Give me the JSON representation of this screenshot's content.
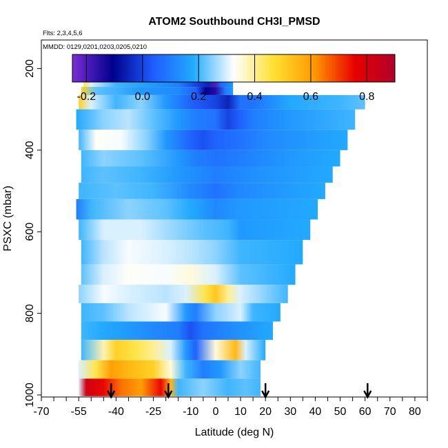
{
  "chart_data": {
    "type": "heatmap",
    "title": "ATOM2 Southbound CH3I_PMSD",
    "annotations": [
      "Flts: 2,3,4,5,6",
      "MMDD: 0129,0201,0203,0205,0210"
    ],
    "xlabel": "Latitude (deg N)",
    "ylabel": "PSXC (mbar)",
    "xlim": [
      -70,
      85
    ],
    "ylim": [
      1005,
      130
    ],
    "y_reversed": true,
    "x_tick_labels": [
      "-70",
      "-55",
      "-40",
      "-25",
      "-10",
      "0",
      "10",
      "20",
      "30",
      "40",
      "50",
      "60",
      "70",
      "80"
    ],
    "y_tick_labels": [
      "200",
      "400",
      "600",
      "800",
      "1000"
    ],
    "colorbar": {
      "range": [
        -0.25,
        0.9
      ],
      "tick_values": [
        -0.2,
        0.0,
        0.2,
        0.4,
        0.6,
        0.8
      ],
      "tick_labels": [
        "-0.2",
        "0.0",
        "0.2",
        "0.4",
        "0.6",
        "0.8"
      ],
      "colors": [
        "#7b2cd6",
        "#00008c",
        "#1f5cff",
        "#22aaff",
        "#ffffff",
        "#ffe030",
        "#ff9900",
        "#e80000",
        "#b0002a"
      ]
    },
    "profile_locations_lat": [
      -42,
      -19,
      20,
      61
    ],
    "curtain_layers": [
      {
        "p_top": 170,
        "p_bot": 200,
        "lat_start": -53,
        "lat_end": -46,
        "values": [
          {
            "lat": -53,
            "v": 0.55
          },
          {
            "lat": -51,
            "v": 0.45
          },
          {
            "lat": -49,
            "v": 0.35
          },
          {
            "lat": -47,
            "v": 0.25
          }
        ]
      },
      {
        "p_top": 200,
        "p_bot": 245,
        "lat_start": -53,
        "lat_end": 7,
        "values": [
          {
            "lat": -53,
            "v": 0.45
          },
          {
            "lat": -50,
            "v": 0.3
          },
          {
            "lat": -40,
            "v": 0.2
          },
          {
            "lat": -25,
            "v": 0.15
          },
          {
            "lat": -15,
            "v": 0.1
          },
          {
            "lat": -8,
            "v": 0.0
          },
          {
            "lat": -3,
            "v": -0.05
          },
          {
            "lat": 0,
            "v": -0.2
          },
          {
            "lat": 2,
            "v": 0.05
          },
          {
            "lat": 7,
            "v": 0.15
          }
        ]
      },
      {
        "p_top": 245,
        "p_bot": 265,
        "lat_start": -54,
        "lat_end": 7,
        "values": [
          {
            "lat": -54,
            "v": 0.5
          },
          {
            "lat": -48,
            "v": 0.22
          },
          {
            "lat": -30,
            "v": 0.15
          },
          {
            "lat": -15,
            "v": 0.12
          },
          {
            "lat": -8,
            "v": 0.05
          },
          {
            "lat": -4,
            "v": -0.1
          },
          {
            "lat": 0,
            "v": -0.15
          },
          {
            "lat": 4,
            "v": 0.1
          },
          {
            "lat": 7,
            "v": 0.15
          }
        ]
      },
      {
        "p_top": 265,
        "p_bot": 300,
        "lat_start": -55,
        "lat_end": 60,
        "values": [
          {
            "lat": -55,
            "v": 0.5
          },
          {
            "lat": -50,
            "v": 0.3
          },
          {
            "lat": -40,
            "v": 0.2
          },
          {
            "lat": -30,
            "v": 0.25
          },
          {
            "lat": -20,
            "v": 0.15
          },
          {
            "lat": -10,
            "v": 0.05
          },
          {
            "lat": 0,
            "v": 0.0
          },
          {
            "lat": 5,
            "v": -0.05
          },
          {
            "lat": 10,
            "v": 0.08
          },
          {
            "lat": 15,
            "v": 0.08
          },
          {
            "lat": 30,
            "v": 0.18
          },
          {
            "lat": 50,
            "v": 0.2
          },
          {
            "lat": 60,
            "v": 0.22
          }
        ]
      },
      {
        "p_top": 300,
        "p_bot": 350,
        "lat_start": -56,
        "lat_end": 56,
        "values": [
          {
            "lat": -56,
            "v": 0.18
          },
          {
            "lat": -45,
            "v": 0.25
          },
          {
            "lat": -35,
            "v": 0.28
          },
          {
            "lat": -25,
            "v": 0.22
          },
          {
            "lat": -15,
            "v": 0.15
          },
          {
            "lat": -8,
            "v": 0.1
          },
          {
            "lat": 0,
            "v": 0.08
          },
          {
            "lat": 5,
            "v": 0.0
          },
          {
            "lat": 10,
            "v": 0.05
          },
          {
            "lat": 15,
            "v": 0.1
          },
          {
            "lat": 30,
            "v": 0.15
          },
          {
            "lat": 56,
            "v": 0.2
          }
        ]
      },
      {
        "p_top": 350,
        "p_bot": 400,
        "lat_start": -55,
        "lat_end": 53,
        "values": [
          {
            "lat": -55,
            "v": 0.2
          },
          {
            "lat": -48,
            "v": 0.33
          },
          {
            "lat": -38,
            "v": 0.32
          },
          {
            "lat": -28,
            "v": 0.25
          },
          {
            "lat": -20,
            "v": 0.15
          },
          {
            "lat": -10,
            "v": 0.05
          },
          {
            "lat": -5,
            "v": 0.02
          },
          {
            "lat": 0,
            "v": 0.05
          },
          {
            "lat": 10,
            "v": 0.08
          },
          {
            "lat": 20,
            "v": 0.12
          },
          {
            "lat": 53,
            "v": 0.18
          }
        ]
      },
      {
        "p_top": 400,
        "p_bot": 440,
        "lat_start": -54,
        "lat_end": 50,
        "values": [
          {
            "lat": -54,
            "v": 0.2
          },
          {
            "lat": -45,
            "v": 0.25
          },
          {
            "lat": -30,
            "v": 0.22
          },
          {
            "lat": -15,
            "v": 0.15
          },
          {
            "lat": -8,
            "v": 0.1
          },
          {
            "lat": 0,
            "v": 0.08
          },
          {
            "lat": 10,
            "v": 0.1
          },
          {
            "lat": 30,
            "v": 0.15
          },
          {
            "lat": 50,
            "v": 0.18
          }
        ]
      },
      {
        "p_top": 440,
        "p_bot": 480,
        "lat_start": -54,
        "lat_end": 47,
        "values": [
          {
            "lat": -54,
            "v": 0.2
          },
          {
            "lat": -45,
            "v": 0.22
          },
          {
            "lat": -30,
            "v": 0.2
          },
          {
            "lat": -15,
            "v": 0.15
          },
          {
            "lat": 0,
            "v": 0.1
          },
          {
            "lat": 20,
            "v": 0.14
          },
          {
            "lat": 47,
            "v": 0.18
          }
        ]
      },
      {
        "p_top": 480,
        "p_bot": 520,
        "lat_start": -55,
        "lat_end": 44,
        "values": [
          {
            "lat": -55,
            "v": 0.2
          },
          {
            "lat": -40,
            "v": 0.22
          },
          {
            "lat": -25,
            "v": 0.2
          },
          {
            "lat": -10,
            "v": 0.12
          },
          {
            "lat": 0,
            "v": 0.08
          },
          {
            "lat": 10,
            "v": 0.12
          },
          {
            "lat": 44,
            "v": 0.18
          }
        ]
      },
      {
        "p_top": 520,
        "p_bot": 570,
        "lat_start": -56,
        "lat_end": 41,
        "values": [
          {
            "lat": -56,
            "v": 0.1
          },
          {
            "lat": -50,
            "v": 0.2
          },
          {
            "lat": -35,
            "v": 0.25
          },
          {
            "lat": -20,
            "v": 0.22
          },
          {
            "lat": -10,
            "v": 0.18
          },
          {
            "lat": 0,
            "v": 0.12
          },
          {
            "lat": 10,
            "v": 0.15
          },
          {
            "lat": 41,
            "v": 0.18
          }
        ]
      },
      {
        "p_top": 570,
        "p_bot": 620,
        "lat_start": -55,
        "lat_end": 38,
        "values": [
          {
            "lat": -55,
            "v": 0.2
          },
          {
            "lat": -45,
            "v": 0.3
          },
          {
            "lat": -30,
            "v": 0.3
          },
          {
            "lat": -15,
            "v": 0.25
          },
          {
            "lat": -5,
            "v": 0.22
          },
          {
            "lat": 5,
            "v": 0.2
          },
          {
            "lat": 10,
            "v": 0.15
          },
          {
            "lat": 38,
            "v": 0.18
          }
        ]
      },
      {
        "p_top": 620,
        "p_bot": 680,
        "lat_start": -54,
        "lat_end": 35,
        "values": [
          {
            "lat": -54,
            "v": 0.2
          },
          {
            "lat": -45,
            "v": 0.28
          },
          {
            "lat": -35,
            "v": 0.32
          },
          {
            "lat": -20,
            "v": 0.3
          },
          {
            "lat": -10,
            "v": 0.28
          },
          {
            "lat": 0,
            "v": 0.25
          },
          {
            "lat": 10,
            "v": 0.2
          },
          {
            "lat": 35,
            "v": 0.18
          }
        ]
      },
      {
        "p_top": 680,
        "p_bot": 730,
        "lat_start": -54,
        "lat_end": 32,
        "values": [
          {
            "lat": -54,
            "v": 0.22
          },
          {
            "lat": -45,
            "v": 0.3
          },
          {
            "lat": -35,
            "v": 0.33
          },
          {
            "lat": -20,
            "v": 0.32
          },
          {
            "lat": -10,
            "v": 0.35
          },
          {
            "lat": 0,
            "v": 0.3
          },
          {
            "lat": 10,
            "v": 0.22
          },
          {
            "lat": 32,
            "v": 0.18
          }
        ]
      },
      {
        "p_top": 730,
        "p_bot": 775,
        "lat_start": -55,
        "lat_end": 29,
        "values": [
          {
            "lat": -55,
            "v": 0.25
          },
          {
            "lat": -45,
            "v": 0.32
          },
          {
            "lat": -35,
            "v": 0.3
          },
          {
            "lat": -20,
            "v": 0.28
          },
          {
            "lat": -12,
            "v": 0.3
          },
          {
            "lat": -4,
            "v": 0.45
          },
          {
            "lat": 0,
            "v": 0.52
          },
          {
            "lat": 5,
            "v": 0.4
          },
          {
            "lat": 10,
            "v": 0.3
          },
          {
            "lat": 29,
            "v": 0.2
          }
        ]
      },
      {
        "p_top": 775,
        "p_bot": 820,
        "lat_start": -54,
        "lat_end": 26,
        "values": [
          {
            "lat": -54,
            "v": 0.2
          },
          {
            "lat": -45,
            "v": 0.22
          },
          {
            "lat": -35,
            "v": 0.28
          },
          {
            "lat": -20,
            "v": 0.32
          },
          {
            "lat": -12,
            "v": 0.15
          },
          {
            "lat": -8,
            "v": 0.1
          },
          {
            "lat": 0,
            "v": 0.25
          },
          {
            "lat": 10,
            "v": 0.3
          },
          {
            "lat": 15,
            "v": 0.2
          },
          {
            "lat": 26,
            "v": 0.18
          }
        ]
      },
      {
        "p_top": 820,
        "p_bot": 865,
        "lat_start": -54,
        "lat_end": 23,
        "values": [
          {
            "lat": -54,
            "v": 0.2
          },
          {
            "lat": -45,
            "v": 0.18
          },
          {
            "lat": -35,
            "v": 0.15
          },
          {
            "lat": -25,
            "v": 0.12
          },
          {
            "lat": -15,
            "v": 0.1
          },
          {
            "lat": -10,
            "v": 0.02
          },
          {
            "lat": -5,
            "v": 0.08
          },
          {
            "lat": 5,
            "v": 0.12
          },
          {
            "lat": 23,
            "v": 0.18
          }
        ]
      },
      {
        "p_top": 865,
        "p_bot": 915,
        "lat_start": -54,
        "lat_end": 20,
        "values": [
          {
            "lat": -54,
            "v": 0.2
          },
          {
            "lat": -45,
            "v": 0.38
          },
          {
            "lat": -40,
            "v": 0.5
          },
          {
            "lat": -32,
            "v": 0.45
          },
          {
            "lat": -25,
            "v": 0.4
          },
          {
            "lat": -18,
            "v": 0.3
          },
          {
            "lat": -12,
            "v": 0.15
          },
          {
            "lat": -8,
            "v": 0.05
          },
          {
            "lat": 0,
            "v": 0.35
          },
          {
            "lat": 8,
            "v": 0.55
          },
          {
            "lat": 12,
            "v": 0.3
          },
          {
            "lat": 20,
            "v": 0.18
          }
        ]
      },
      {
        "p_top": 915,
        "p_bot": 960,
        "lat_start": -55,
        "lat_end": 18,
        "values": [
          {
            "lat": -55,
            "v": 0.3
          },
          {
            "lat": -48,
            "v": 0.45
          },
          {
            "lat": -42,
            "v": 0.6
          },
          {
            "lat": -35,
            "v": 0.55
          },
          {
            "lat": -25,
            "v": 0.5
          },
          {
            "lat": -18,
            "v": 0.35
          },
          {
            "lat": -12,
            "v": 0.2
          },
          {
            "lat": -5,
            "v": 0.1
          },
          {
            "lat": 2,
            "v": 0.15
          },
          {
            "lat": 10,
            "v": 0.25
          },
          {
            "lat": 18,
            "v": 0.2
          }
        ]
      },
      {
        "p_top": 960,
        "p_bot": 1003,
        "lat_start": -55,
        "lat_end": 18,
        "values": [
          {
            "lat": -55,
            "v": 0.3
          },
          {
            "lat": -52,
            "v": 0.82
          },
          {
            "lat": -45,
            "v": 0.75
          },
          {
            "lat": -38,
            "v": 0.65
          },
          {
            "lat": -30,
            "v": 0.6
          },
          {
            "lat": -22,
            "v": 0.75
          },
          {
            "lat": -18,
            "v": 0.55
          },
          {
            "lat": -15,
            "v": 0.2
          },
          {
            "lat": -5,
            "v": 0.25
          },
          {
            "lat": 5,
            "v": 0.2
          },
          {
            "lat": 12,
            "v": 0.22
          },
          {
            "lat": 18,
            "v": 0.2
          }
        ]
      }
    ],
    "grid": false,
    "legend": "colorbar-top"
  }
}
